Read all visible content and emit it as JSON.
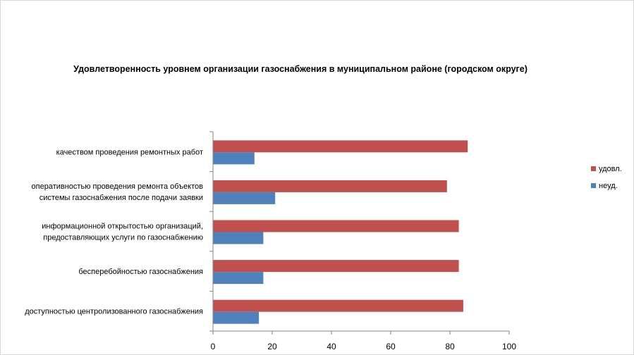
{
  "chart_data": {
    "type": "bar",
    "orientation": "horizontal",
    "title": "Удовлетворенность уровнем организации газоснабжения в муниципальном районе (городском округе)",
    "categories": [
      [
        "качеством  проведения  ремонтных  работ"
      ],
      [
        "оперативностью  проведения  ремонта объектов",
        "системы газоснабжения после подачи заявки"
      ],
      [
        "информационной открытостью организаций,",
        "предоставляющих услуги по газоснабжению"
      ],
      [
        "бесперебойностью  газоснабжения"
      ],
      [
        "доступностью центролизованного газоснабжения"
      ]
    ],
    "series": [
      {
        "name": "удовл.",
        "color": "#c0504d",
        "values": [
          86,
          79,
          83,
          83,
          84.5
        ]
      },
      {
        "name": "неуд.",
        "color": "#4f81bd",
        "values": [
          14,
          21,
          17,
          17,
          15.5
        ]
      }
    ],
    "xlim": [
      0,
      100
    ],
    "xticks": [
      "0",
      "20",
      "40",
      "60",
      "80",
      "100"
    ],
    "grid": false,
    "legend_position": "right"
  }
}
